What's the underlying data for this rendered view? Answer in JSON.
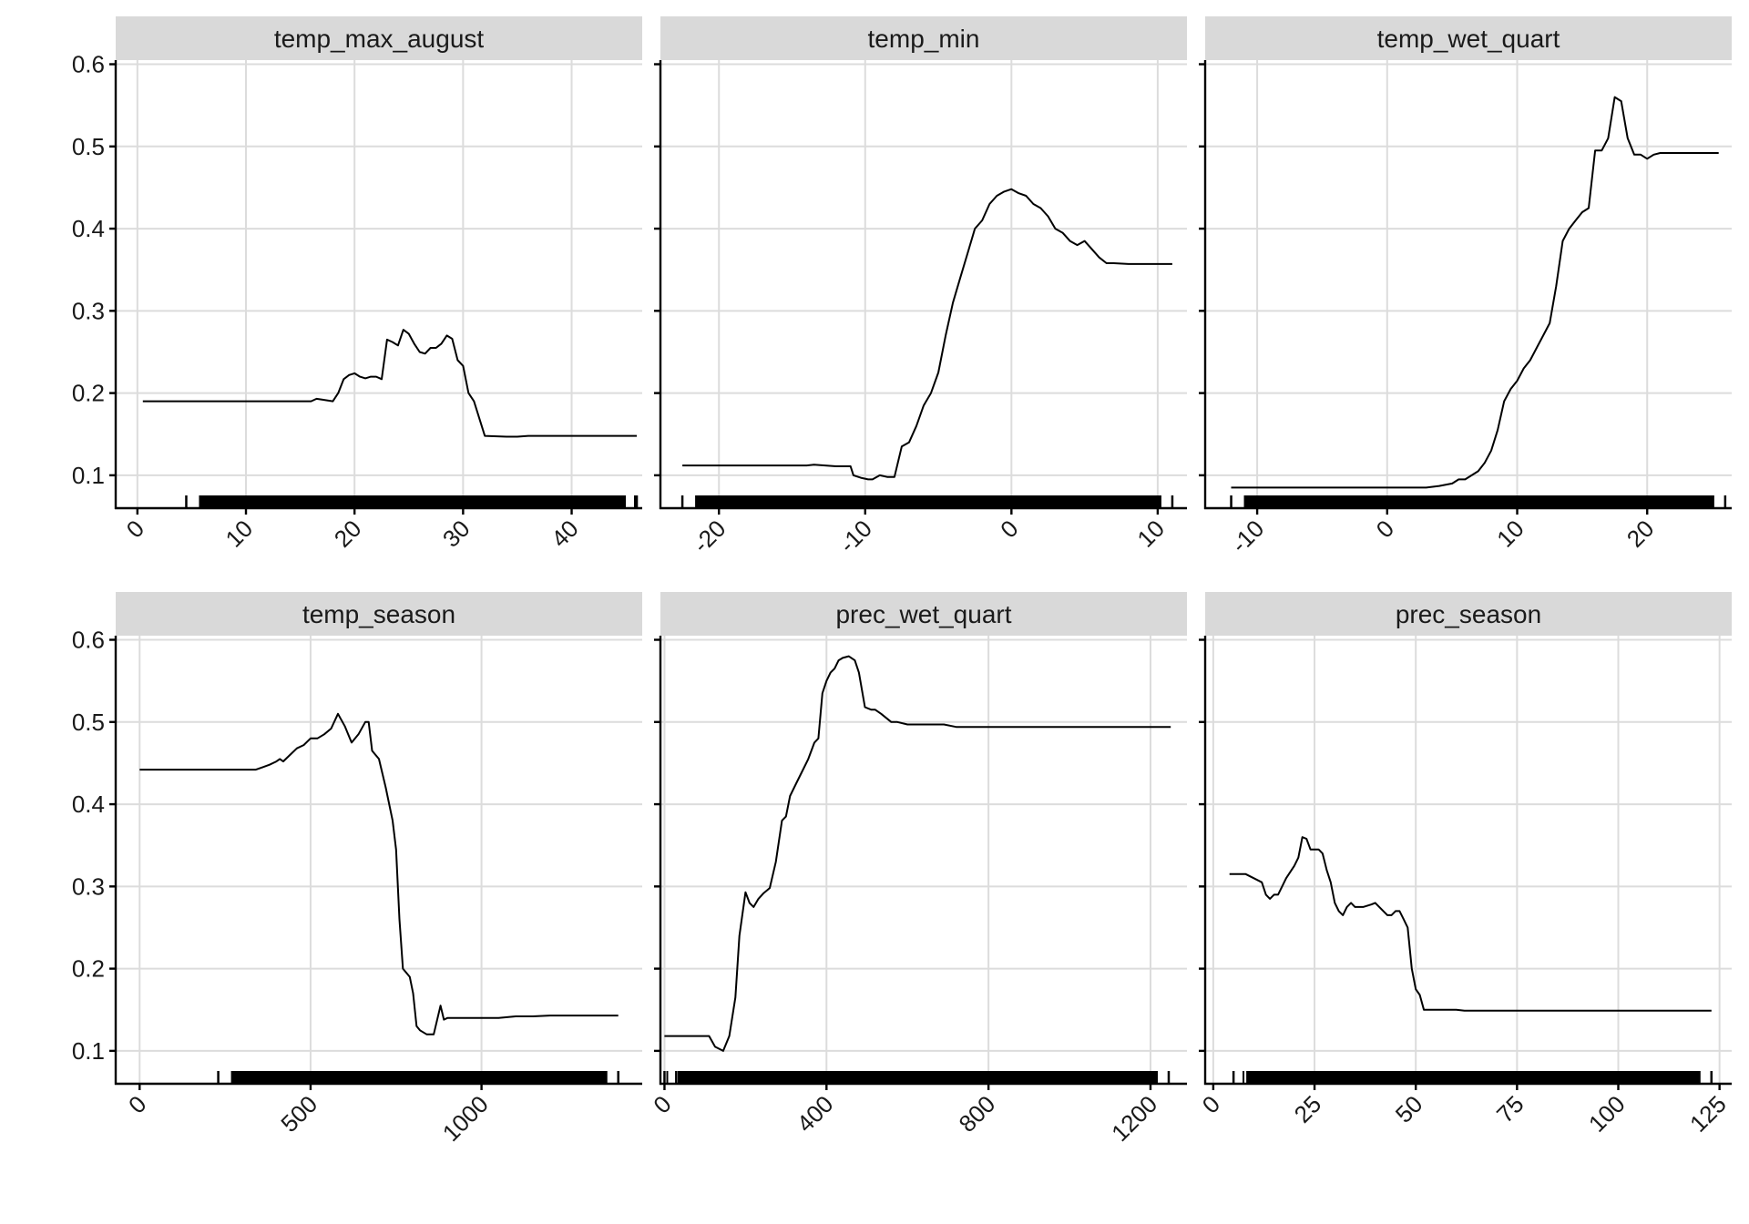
{
  "chart_data": [
    {
      "type": "line",
      "title": "temp_max_august",
      "xlim": [
        -2,
        46.5
      ],
      "ylim": [
        0.06,
        0.605
      ],
      "x_ticks": [
        0,
        10,
        20,
        30,
        40
      ],
      "y_ticks": [
        0.1,
        0.2,
        0.3,
        0.4,
        0.5,
        0.6
      ],
      "series": [
        {
          "x": [
            0.5,
            16.0,
            16.5,
            17.0,
            18.0,
            18.5,
            19.0,
            19.5,
            20.0,
            20.5,
            21.0,
            21.5,
            22.0,
            22.5,
            23.0,
            23.5,
            24.0,
            24.5,
            25.0,
            25.5,
            26.0,
            26.5,
            27.0,
            27.5,
            28.0,
            28.5,
            29.0,
            29.5,
            30.0,
            30.5,
            31.0,
            32.0,
            34.0,
            35.0,
            36.0,
            40.0,
            46.0
          ],
          "y": [
            0.19,
            0.19,
            0.193,
            0.192,
            0.19,
            0.2,
            0.217,
            0.222,
            0.224,
            0.22,
            0.218,
            0.22,
            0.22,
            0.217,
            0.265,
            0.262,
            0.258,
            0.277,
            0.272,
            0.26,
            0.25,
            0.248,
            0.255,
            0.255,
            0.26,
            0.27,
            0.266,
            0.24,
            0.233,
            0.2,
            0.19,
            0.148,
            0.147,
            0.147,
            0.148,
            0.148,
            0.148
          ]
        }
      ],
      "rug_range": [
        4.5,
        46
      ]
    },
    {
      "type": "line",
      "title": "temp_min",
      "xlim": [
        -24,
        12
      ],
      "ylim": [
        0.06,
        0.605
      ],
      "x_ticks": [
        -20,
        -10,
        0,
        10
      ],
      "y_ticks": [
        0.1,
        0.2,
        0.3,
        0.4,
        0.5,
        0.6
      ],
      "series": [
        {
          "x": [
            -22.5,
            -14.0,
            -13.5,
            -12.0,
            -11.0,
            -10.8,
            -10.3,
            -9.8,
            -9.5,
            -9.0,
            -8.5,
            -8.0,
            -7.5,
            -7.0,
            -6.5,
            -6.0,
            -5.5,
            -5.0,
            -4.5,
            -4.0,
            -3.5,
            -3.0,
            -2.5,
            -2.0,
            -1.5,
            -1.0,
            -0.5,
            0.0,
            0.5,
            1.0,
            1.5,
            2.0,
            2.5,
            3.0,
            3.5,
            4.0,
            4.5,
            5.0,
            5.5,
            6.0,
            6.5,
            7.0,
            8.0,
            9.0,
            11.0
          ],
          "y": [
            0.112,
            0.112,
            0.113,
            0.111,
            0.111,
            0.1,
            0.097,
            0.095,
            0.095,
            0.1,
            0.098,
            0.098,
            0.135,
            0.14,
            0.16,
            0.185,
            0.2,
            0.225,
            0.27,
            0.31,
            0.34,
            0.37,
            0.4,
            0.41,
            0.43,
            0.44,
            0.445,
            0.448,
            0.443,
            0.44,
            0.43,
            0.425,
            0.415,
            0.4,
            0.395,
            0.385,
            0.38,
            0.385,
            0.375,
            0.365,
            0.358,
            0.358,
            0.357,
            0.357,
            0.357
          ]
        }
      ],
      "rug_range": [
        -22.5,
        11
      ]
    },
    {
      "type": "line",
      "title": "temp_wet_quart",
      "xlim": [
        -14,
        26.5
      ],
      "ylim": [
        0.06,
        0.605
      ],
      "x_ticks": [
        -10,
        0,
        10,
        20
      ],
      "y_ticks": [
        0.1,
        0.2,
        0.3,
        0.4,
        0.5,
        0.6
      ],
      "series": [
        {
          "x": [
            -12.0,
            3.0,
            4.0,
            5.0,
            5.5,
            6.0,
            7.0,
            7.5,
            8.0,
            8.5,
            9.0,
            9.5,
            10.0,
            10.5,
            11.0,
            11.5,
            12.0,
            12.5,
            13.0,
            13.5,
            14.0,
            14.5,
            15.0,
            15.5,
            16.0,
            16.5,
            17.0,
            17.5,
            18.0,
            18.5,
            19.0,
            19.5,
            20.0,
            20.5,
            21.0,
            22.0,
            25.5
          ],
          "y": [
            0.085,
            0.085,
            0.087,
            0.09,
            0.095,
            0.095,
            0.105,
            0.115,
            0.13,
            0.155,
            0.19,
            0.205,
            0.215,
            0.23,
            0.24,
            0.255,
            0.27,
            0.285,
            0.33,
            0.385,
            0.4,
            0.41,
            0.42,
            0.425,
            0.495,
            0.495,
            0.51,
            0.56,
            0.555,
            0.51,
            0.49,
            0.49,
            0.485,
            0.49,
            0.492,
            0.492,
            0.492
          ]
        }
      ],
      "rug_range": [
        -12,
        26
      ]
    },
    {
      "type": "line",
      "title": "temp_season",
      "xlim": [
        -70,
        1470
      ],
      "ylim": [
        0.06,
        0.605
      ],
      "x_ticks": [
        0,
        500,
        1000
      ],
      "y_ticks": [
        0.1,
        0.2,
        0.3,
        0.4,
        0.5,
        0.6
      ],
      "series": [
        {
          "x": [
            0,
            340,
            360,
            380,
            400,
            410,
            420,
            440,
            460,
            480,
            500,
            520,
            540,
            560,
            580,
            600,
            620,
            640,
            660,
            670,
            680,
            700,
            720,
            740,
            750,
            760,
            770,
            790,
            800,
            810,
            820,
            840,
            860,
            880,
            890,
            900,
            920,
            1000,
            1050,
            1100,
            1150,
            1200,
            1250,
            1400
          ],
          "y": [
            0.442,
            0.442,
            0.445,
            0.448,
            0.452,
            0.455,
            0.452,
            0.46,
            0.468,
            0.472,
            0.48,
            0.48,
            0.485,
            0.492,
            0.51,
            0.495,
            0.475,
            0.485,
            0.5,
            0.5,
            0.465,
            0.455,
            0.42,
            0.38,
            0.345,
            0.26,
            0.2,
            0.19,
            0.17,
            0.13,
            0.125,
            0.12,
            0.12,
            0.155,
            0.138,
            0.14,
            0.14,
            0.14,
            0.14,
            0.142,
            0.142,
            0.143,
            0.143,
            0.143
          ]
        }
      ],
      "rug_range": [
        230,
        1400
      ]
    },
    {
      "type": "line",
      "title": "prec_wet_quart",
      "xlim": [
        -10,
        1290
      ],
      "ylim": [
        0.06,
        0.605
      ],
      "x_ticks": [
        0,
        400,
        800,
        1200
      ],
      "y_ticks": [
        0.1,
        0.2,
        0.3,
        0.4,
        0.5,
        0.6
      ],
      "series": [
        {
          "x": [
            0,
            110,
            125,
            145,
            160,
            175,
            185,
            200,
            210,
            220,
            232,
            245,
            260,
            275,
            290,
            300,
            310,
            325,
            340,
            355,
            370,
            380,
            390,
            400,
            410,
            420,
            430,
            440,
            455,
            470,
            480,
            495,
            510,
            520,
            535,
            560,
            575,
            600,
            620,
            640,
            660,
            690,
            720,
            740,
            800,
            1000,
            1250
          ],
          "y": [
            0.118,
            0.118,
            0.105,
            0.1,
            0.118,
            0.165,
            0.24,
            0.293,
            0.28,
            0.275,
            0.285,
            0.292,
            0.298,
            0.33,
            0.38,
            0.385,
            0.41,
            0.425,
            0.44,
            0.455,
            0.475,
            0.48,
            0.535,
            0.55,
            0.56,
            0.565,
            0.575,
            0.578,
            0.58,
            0.575,
            0.56,
            0.518,
            0.515,
            0.515,
            0.51,
            0.5,
            0.5,
            0.497,
            0.497,
            0.497,
            0.497,
            0.497,
            0.494,
            0.494,
            0.494,
            0.494,
            0.494
          ]
        }
      ],
      "rug_range": [
        0,
        1245
      ]
    },
    {
      "type": "line",
      "title": "prec_season",
      "xlim": [
        -2,
        128
      ],
      "ylim": [
        0.06,
        0.605
      ],
      "x_ticks": [
        0,
        25,
        50,
        75,
        100,
        125
      ],
      "y_ticks": [
        0.1,
        0.2,
        0.3,
        0.4,
        0.5,
        0.6
      ],
      "series": [
        {
          "x": [
            4,
            6,
            8,
            10,
            12,
            13,
            14,
            15,
            16,
            17,
            18,
            20,
            21,
            22,
            23,
            24,
            25,
            26,
            27,
            28,
            29,
            30,
            31,
            32,
            33,
            34,
            35,
            36,
            37,
            39,
            40,
            42,
            43,
            44,
            45,
            46,
            47,
            48,
            49,
            50,
            51,
            52,
            53,
            54,
            56,
            58,
            60,
            62,
            65,
            80,
            100,
            123
          ],
          "y": [
            0.315,
            0.315,
            0.315,
            0.31,
            0.305,
            0.29,
            0.285,
            0.29,
            0.29,
            0.3,
            0.31,
            0.325,
            0.335,
            0.36,
            0.358,
            0.345,
            0.345,
            0.345,
            0.34,
            0.32,
            0.305,
            0.28,
            0.27,
            0.265,
            0.275,
            0.28,
            0.275,
            0.275,
            0.275,
            0.278,
            0.28,
            0.27,
            0.265,
            0.265,
            0.27,
            0.27,
            0.26,
            0.25,
            0.2,
            0.175,
            0.168,
            0.15,
            0.15,
            0.15,
            0.15,
            0.15,
            0.15,
            0.149,
            0.149,
            0.149,
            0.149,
            0.149
          ]
        }
      ],
      "rug_range": [
        5,
        123
      ]
    }
  ]
}
